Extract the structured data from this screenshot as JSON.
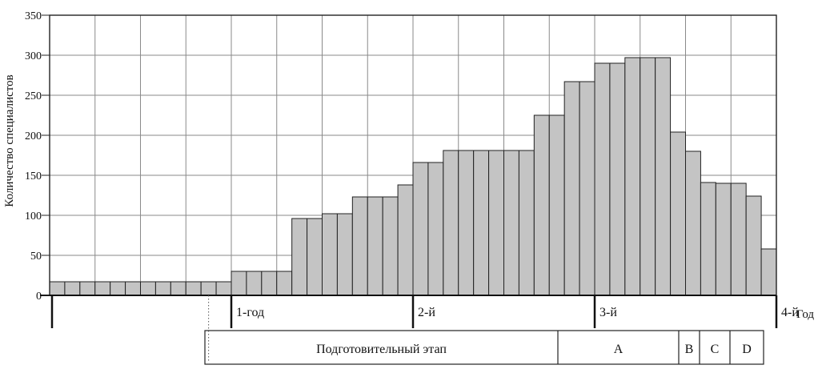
{
  "chart_data": {
    "type": "bar",
    "title": "",
    "ylabel": "Количество специалистов",
    "xlabel": "Год",
    "ylim": [
      0,
      350
    ],
    "yticks": [
      0,
      50,
      100,
      150,
      200,
      250,
      300,
      350
    ],
    "grid": true,
    "bar_color": "#c4c4c4",
    "values": [
      17,
      17,
      17,
      17,
      17,
      17,
      17,
      17,
      17,
      17,
      17,
      17,
      30,
      30,
      30,
      30,
      96,
      96,
      102,
      102,
      123,
      123,
      123,
      138,
      166,
      166,
      181,
      181,
      181,
      181,
      181,
      181,
      225,
      225,
      267,
      267,
      290,
      290,
      297,
      297,
      297,
      204,
      180,
      141,
      140,
      140,
      124,
      58
    ],
    "year_labels": [
      "1-год",
      "2-й",
      "3-й",
      "4-й"
    ],
    "phases": [
      "Подготовительный этап",
      "A",
      "B",
      "C",
      "D"
    ]
  }
}
